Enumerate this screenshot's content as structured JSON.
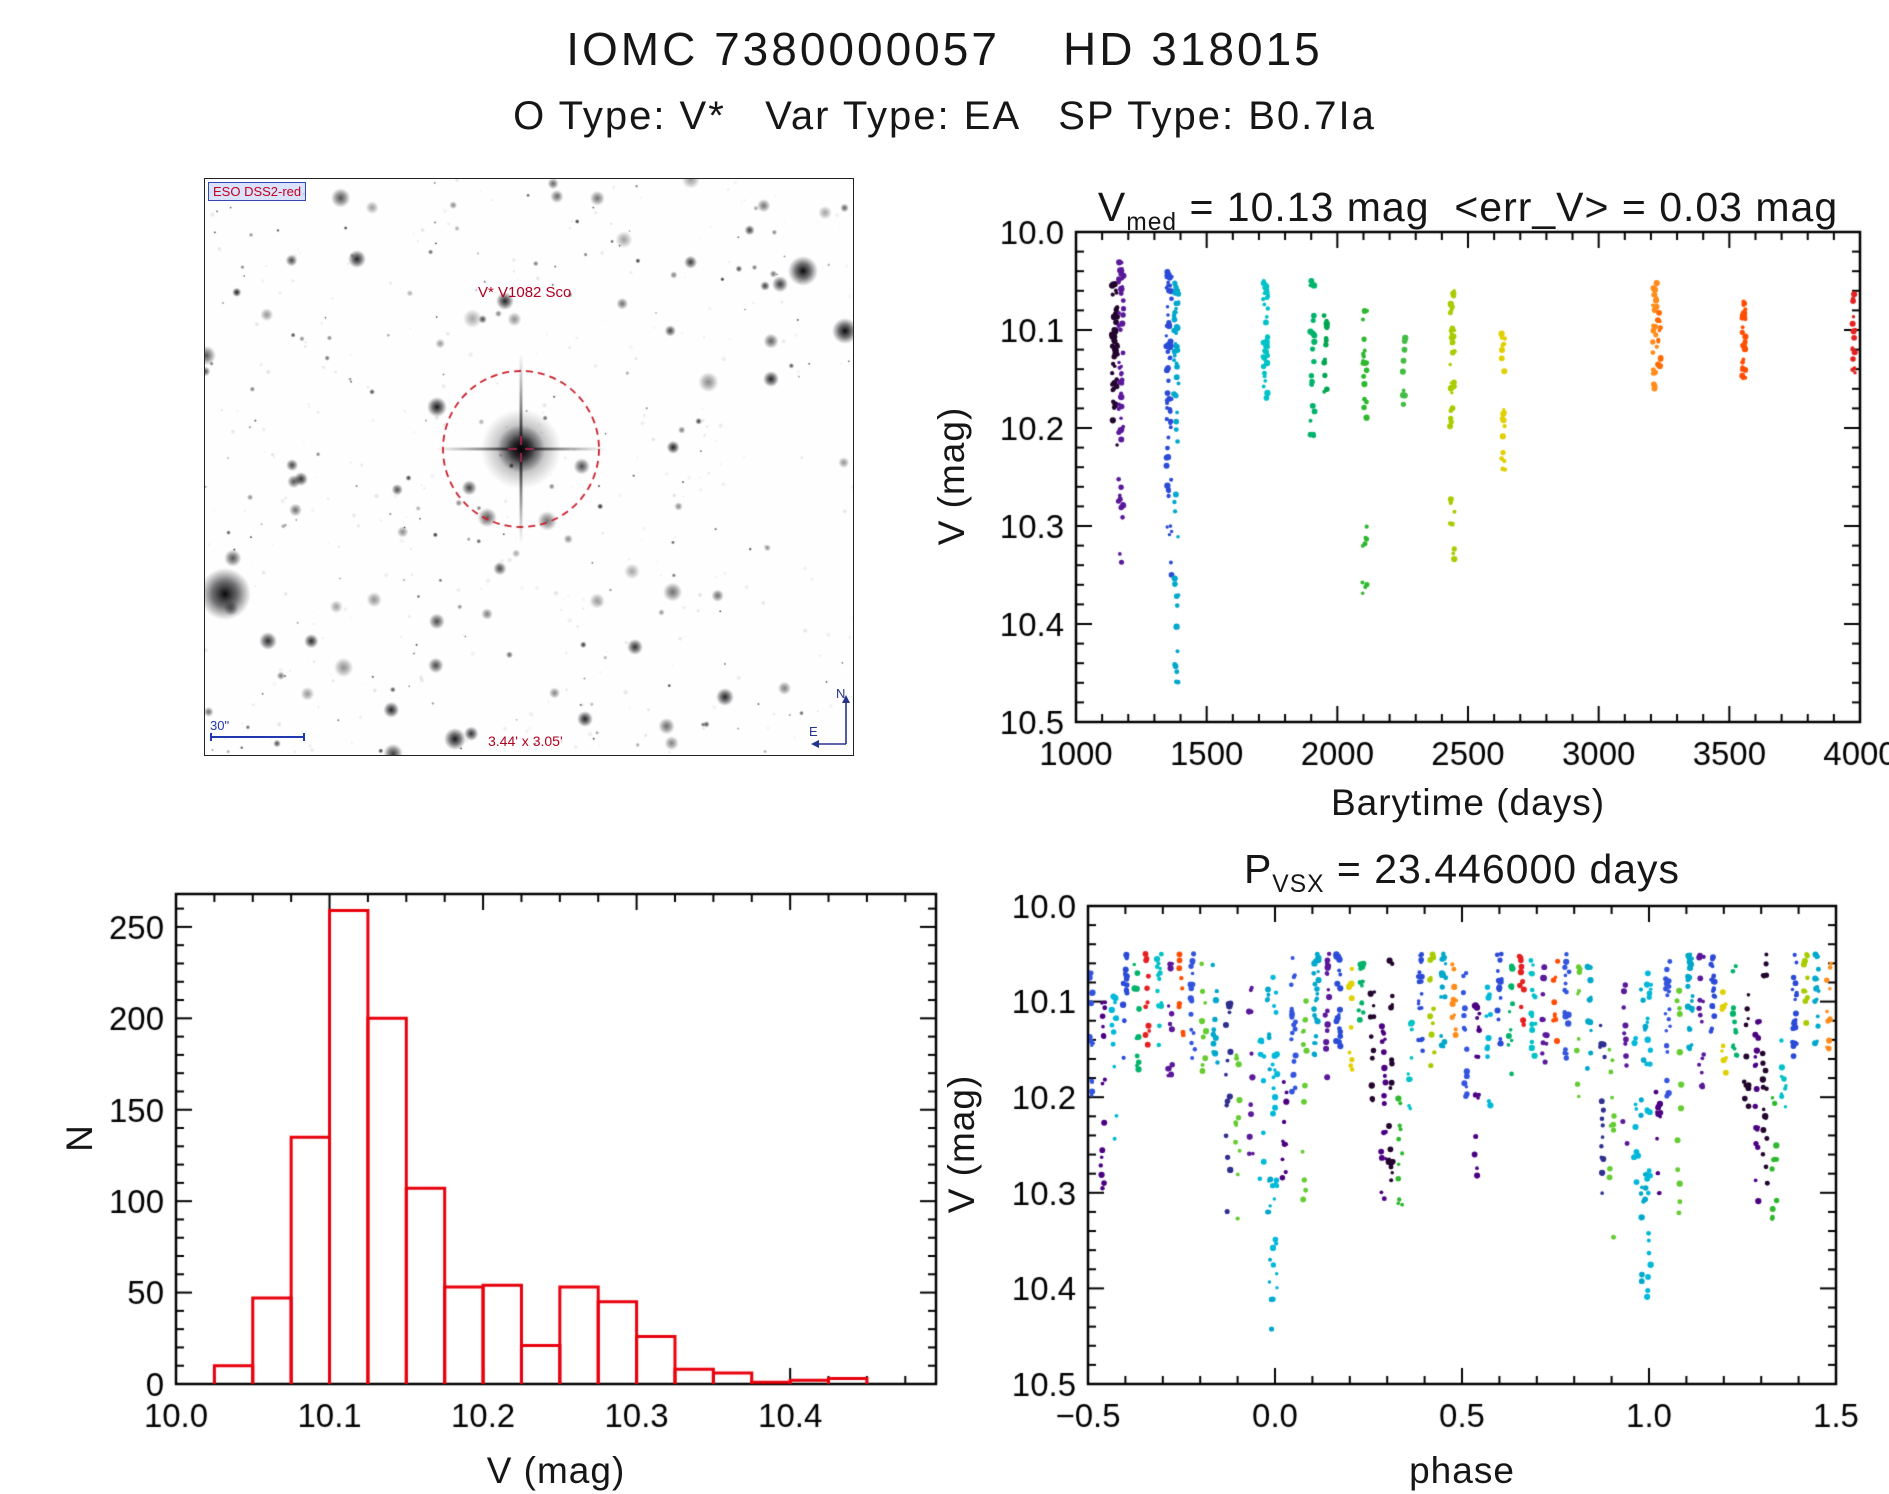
{
  "page": {
    "title_line1": "IOMC 7380000057    HD 318015",
    "title_line2": "O Type: V*   Var Type: EA   SP Type: B0.7Ia"
  },
  "finder": {
    "survey_label": "ESO DSS2-red",
    "star_label": "V* V1082 Sco",
    "fov_label": "3.44' x 3.05'",
    "scale_label": "30\"",
    "compass_north": "N",
    "compass_east": "E"
  },
  "chart_data": [
    {
      "id": "lightcurve",
      "type": "scatter",
      "title_main": "V",
      "title_sub": "med",
      "title_rest": " = 10.13 mag  <err_V> = 0.03 mag",
      "xlabel": "Barytime (days)",
      "ylabel": "V (mag)",
      "xlim": [
        1000,
        4000
      ],
      "ylim": [
        10.5,
        10.0
      ],
      "xticks": [
        1000,
        1500,
        2000,
        2500,
        3000,
        3500,
        4000
      ],
      "xtick_labels": [
        "1000",
        "1500",
        "2000",
        "2500",
        "3000",
        "3500",
        "4000"
      ],
      "yticks": [
        10.0,
        10.1,
        10.2,
        10.3,
        10.4,
        10.5
      ],
      "ytick_labels": [
        "10.0",
        "10.1",
        "10.2",
        "10.3",
        "10.4",
        "10.5"
      ],
      "minor_x": 5,
      "minor_y": 5,
      "clusters": [
        {
          "x": 1148,
          "c": "#23052e",
          "sx": 22,
          "spans": [
            [
              10.05,
              10.18,
              42
            ],
            [
              10.1,
              10.22,
              16
            ]
          ]
        },
        {
          "x": 1172,
          "c": "#5a189a",
          "sx": 20,
          "spans": [
            [
              10.03,
              10.22,
              46
            ],
            [
              10.25,
              10.34,
              12
            ]
          ]
        },
        {
          "x": 1356,
          "c": "#2b4bd7",
          "sx": 22,
          "spans": [
            [
              10.04,
              10.28,
              58
            ],
            [
              10.3,
              10.36,
              6
            ]
          ]
        },
        {
          "x": 1384,
          "c": "#00a8cc",
          "sx": 18,
          "spans": [
            [
              10.05,
              10.22,
              38
            ],
            [
              10.26,
              10.46,
              16
            ]
          ]
        },
        {
          "x": 1725,
          "c": "#00c2c7",
          "sx": 20,
          "spans": [
            [
              10.05,
              10.17,
              44
            ]
          ]
        },
        {
          "x": 1905,
          "c": "#00b36b",
          "sx": 16,
          "spans": [
            [
              10.05,
              10.21,
              22
            ]
          ]
        },
        {
          "x": 1955,
          "c": "#00a651",
          "sx": 14,
          "spans": [
            [
              10.08,
              10.17,
              15
            ]
          ]
        },
        {
          "x": 2105,
          "c": "#2eb82e",
          "sx": 18,
          "spans": [
            [
              10.08,
              10.2,
              22
            ],
            [
              10.3,
              10.37,
              9
            ]
          ]
        },
        {
          "x": 2255,
          "c": "#44bb44",
          "sx": 12,
          "spans": [
            [
              10.1,
              10.18,
              10
            ]
          ]
        },
        {
          "x": 2440,
          "c": "#a8cc00",
          "sx": 18,
          "spans": [
            [
              10.06,
              10.2,
              34
            ],
            [
              10.27,
              10.34,
              8
            ]
          ]
        },
        {
          "x": 2635,
          "c": "#e0d000",
          "sx": 14,
          "spans": [
            [
              10.1,
              10.25,
              22
            ]
          ]
        },
        {
          "x": 3215,
          "c": "#ff8c1a",
          "sx": 16,
          "spans": [
            [
              10.05,
              10.16,
              30
            ]
          ]
        },
        {
          "x": 3232,
          "c": "#ff6a00",
          "sx": 12,
          "spans": [
            [
              10.08,
              10.15,
              12
            ]
          ]
        },
        {
          "x": 3555,
          "c": "#ff4d00",
          "sx": 14,
          "spans": [
            [
              10.07,
              10.15,
              26
            ]
          ]
        },
        {
          "x": 3975,
          "c": "#e62020",
          "sx": 14,
          "spans": [
            [
              10.06,
              10.15,
              18
            ]
          ]
        }
      ]
    },
    {
      "id": "histogram",
      "type": "histogram",
      "xlabel": "V (mag)",
      "ylabel": "N",
      "xlim": [
        10.0,
        10.495
      ],
      "ylim": [
        0,
        268
      ],
      "xticks": [
        10.0,
        10.1,
        10.2,
        10.3,
        10.4
      ],
      "xtick_labels": [
        "10.0",
        "10.1",
        "10.2",
        "10.3",
        "10.4"
      ],
      "yticks": [
        0,
        50,
        100,
        150,
        200,
        250
      ],
      "ytick_labels": [
        "0",
        "50",
        "100",
        "150",
        "200",
        "250"
      ],
      "minor_x": 4,
      "minor_y": 5,
      "bin_start": 10.0,
      "bin_width": 0.025,
      "counts": [
        0,
        10,
        47,
        135,
        259,
        200,
        107,
        53,
        54,
        21,
        53,
        45,
        26,
        8,
        6,
        1,
        2,
        3
      ],
      "color": "#e8000d"
    },
    {
      "id": "phase",
      "type": "scatter",
      "title_main": "P",
      "title_sub": "VSX",
      "title_rest": " = 23.446000 days",
      "xlabel": "phase",
      "ylabel": "V (mag)",
      "xlim": [
        -0.5,
        1.5
      ],
      "ylim": [
        10.5,
        10.0
      ],
      "xticks": [
        -0.5,
        0.0,
        0.5,
        1.0,
        1.5
      ],
      "xtick_labels": [
        "−0.5",
        "0.0",
        "0.5",
        "1.0",
        "1.5"
      ],
      "yticks": [
        10.0,
        10.1,
        10.2,
        10.3,
        10.4,
        10.5
      ],
      "ytick_labels": [
        "10.0",
        "10.1",
        "10.2",
        "10.3",
        "10.4",
        "10.5"
      ],
      "minor_x": 5,
      "minor_y": 5,
      "clusters": [
        {
          "x": 0.0,
          "c": "#00b8d9",
          "spans": [
            [
              10.07,
              10.22,
              15
            ],
            [
              10.27,
              10.45,
              12
            ]
          ]
        },
        {
          "x": 0.025,
          "c": "#4b0082",
          "spans": [
            [
              10.18,
              10.31,
              12
            ]
          ]
        },
        {
          "x": 0.05,
          "c": "#3355dd",
          "spans": [
            [
              10.05,
              10.2,
              20
            ]
          ]
        },
        {
          "x": 0.08,
          "c": "#66cc33",
          "spans": [
            [
              10.07,
              10.33,
              13
            ]
          ]
        },
        {
          "x": 0.11,
          "c": "#00a8cc",
          "spans": [
            [
              10.05,
              10.16,
              24
            ]
          ]
        },
        {
          "x": 0.14,
          "c": "#5a189a",
          "spans": [
            [
              10.05,
              10.19,
              16
            ]
          ]
        },
        {
          "x": 0.17,
          "c": "#2b4bd7",
          "spans": [
            [
              10.05,
              10.15,
              20
            ]
          ]
        },
        {
          "x": 0.2,
          "c": "#e0d000",
          "spans": [
            [
              10.06,
              10.18,
              11
            ]
          ]
        },
        {
          "x": 0.23,
          "c": "#00b36b",
          "spans": [
            [
              10.06,
              10.17,
              14
            ]
          ]
        },
        {
          "x": 0.26,
          "c": "#23052e",
          "spans": [
            [
              10.08,
              10.22,
              12
            ]
          ]
        },
        {
          "x": 0.29,
          "c": "#4b0082",
          "spans": [
            [
              10.12,
              10.31,
              18
            ]
          ]
        },
        {
          "x": 0.31,
          "c": "#23052e",
          "spans": [
            [
              10.15,
              10.3,
              14
            ],
            [
              10.05,
              10.11,
              5
            ]
          ]
        },
        {
          "x": 0.335,
          "c": "#2eb82e",
          "spans": [
            [
              10.2,
              10.35,
              11
            ]
          ]
        },
        {
          "x": 0.36,
          "c": "#00c2c7",
          "spans": [
            [
              10.12,
              10.22,
              9
            ]
          ]
        },
        {
          "x": 0.39,
          "c": "#2b4bd7",
          "spans": [
            [
              10.05,
              10.16,
              20
            ]
          ]
        },
        {
          "x": 0.42,
          "c": "#a8cc00",
          "spans": [
            [
              10.05,
              10.17,
              11
            ]
          ]
        },
        {
          "x": 0.45,
          "c": "#00a8cc",
          "spans": [
            [
              10.05,
              10.15,
              18
            ]
          ]
        },
        {
          "x": 0.48,
          "c": "#ff8c1a",
          "spans": [
            [
              10.06,
              10.16,
              11
            ]
          ]
        },
        {
          "x": 0.51,
          "c": "#3355dd",
          "spans": [
            [
              10.07,
              10.2,
              14
            ]
          ]
        },
        {
          "x": 0.54,
          "c": "#4b0082",
          "spans": [
            [
              10.1,
              10.3,
              16
            ]
          ]
        },
        {
          "x": 0.57,
          "c": "#00b8d9",
          "spans": [
            [
              10.08,
              10.25,
              12
            ]
          ]
        },
        {
          "x": 0.6,
          "c": "#2b4bd7",
          "spans": [
            [
              10.05,
              10.16,
              18
            ]
          ]
        },
        {
          "x": 0.63,
          "c": "#00b36b",
          "spans": [
            [
              10.06,
              10.18,
              11
            ]
          ]
        },
        {
          "x": 0.66,
          "c": "#e62020",
          "spans": [
            [
              10.05,
              10.15,
              11
            ]
          ]
        },
        {
          "x": 0.69,
          "c": "#00c2c7",
          "spans": [
            [
              10.05,
              10.16,
              16
            ]
          ]
        },
        {
          "x": 0.72,
          "c": "#5a189a",
          "spans": [
            [
              10.06,
              10.18,
              12
            ]
          ]
        },
        {
          "x": 0.75,
          "c": "#ff4d00",
          "spans": [
            [
              10.05,
              10.15,
              9
            ]
          ]
        },
        {
          "x": 0.78,
          "c": "#3355dd",
          "spans": [
            [
              10.05,
              10.16,
              16
            ]
          ]
        },
        {
          "x": 0.81,
          "c": "#66cc33",
          "spans": [
            [
              10.06,
              10.2,
              9
            ]
          ]
        },
        {
          "x": 0.84,
          "c": "#00a8cc",
          "spans": [
            [
              10.06,
              10.17,
              12
            ]
          ]
        },
        {
          "x": 0.875,
          "c": "#2f2f8f",
          "spans": [
            [
              10.1,
              10.32,
              15
            ]
          ]
        },
        {
          "x": 0.9,
          "c": "#66cc33",
          "spans": [
            [
              10.15,
              10.35,
              11
            ]
          ]
        },
        {
          "x": 0.935,
          "c": "#5a189a",
          "spans": [
            [
              10.08,
              10.28,
              12
            ]
          ]
        },
        {
          "x": 0.965,
          "c": "#00b8d9",
          "spans": [
            [
              10.1,
              10.3,
              10
            ]
          ]
        },
        {
          "x": 0.985,
          "c": "#00a8cc",
          "spans": [
            [
              10.28,
              10.45,
              9
            ],
            [
              10.08,
              10.22,
              7
            ]
          ]
        }
      ]
    }
  ]
}
